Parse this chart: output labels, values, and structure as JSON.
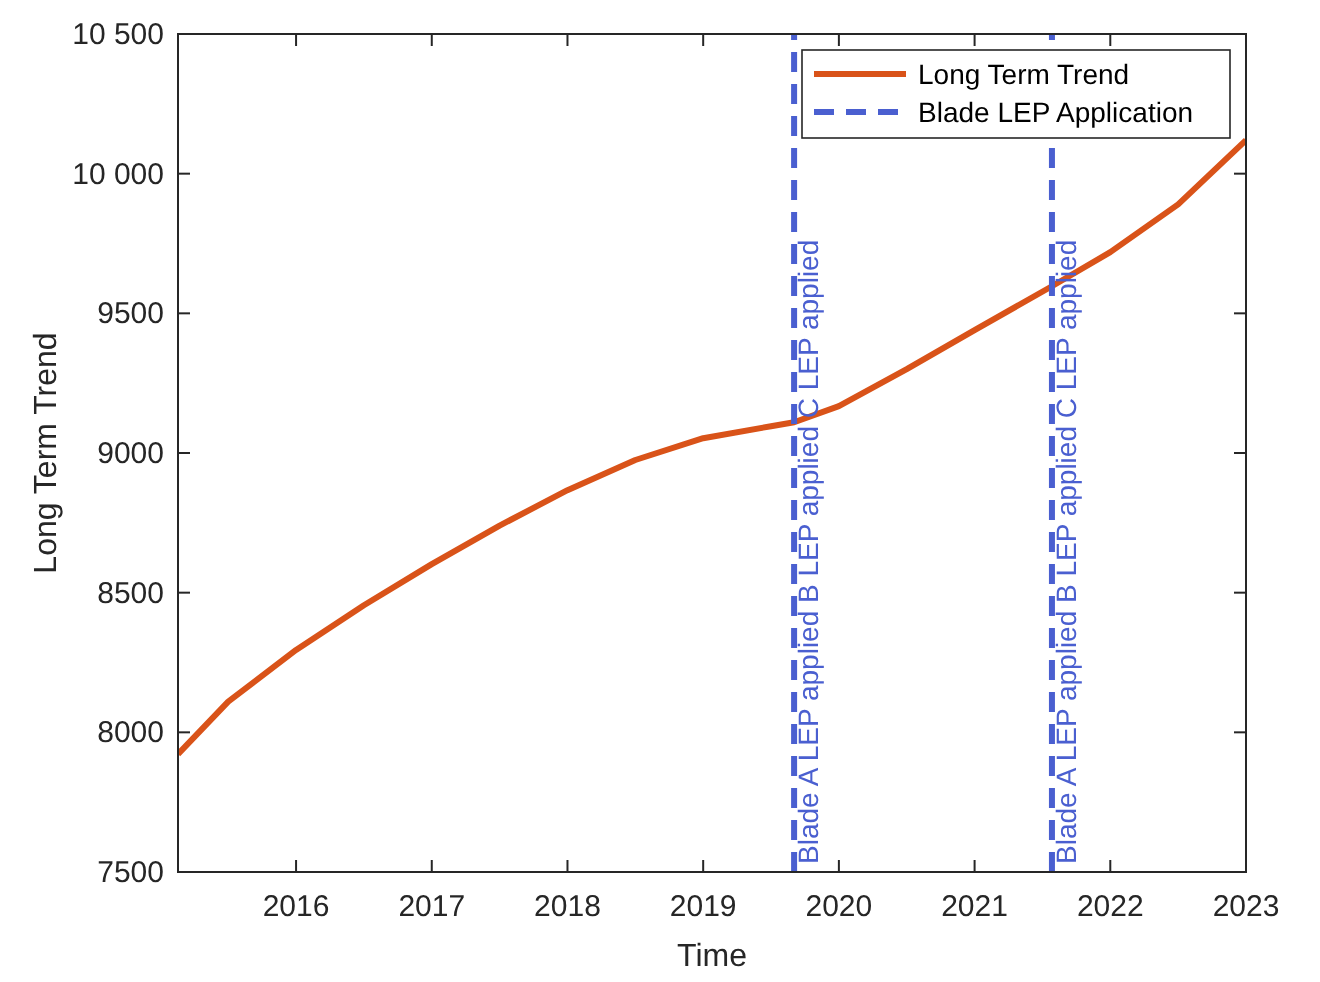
{
  "chart_data": {
    "type": "line",
    "xlabel": "Time",
    "ylabel": "Long Term Trend",
    "xlim": [
      2015.13,
      2023
    ],
    "xticks": [
      2016,
      2017,
      2018,
      2019,
      2020,
      2021,
      2022,
      2023
    ],
    "ylim": [
      7500,
      10500
    ],
    "yticks": [
      7500,
      8000,
      8500,
      9000,
      9500,
      {
        "value": 10000,
        "label": "10 000"
      },
      {
        "value": 10500,
        "label": "10 500"
      }
    ],
    "grid": false,
    "legend": "top right",
    "series": [
      {
        "name": "Long Term Trend",
        "color": "#d95319",
        "line_style": "solid",
        "x": [
          2015.13,
          2015.5,
          2016,
          2016.5,
          2017,
          2017.5,
          2018,
          2018.5,
          2019,
          2019.5,
          2019.67,
          2020,
          2020.5,
          2021,
          2021.57,
          2022,
          2022.5,
          2023
        ],
        "values": [
          7922,
          8110,
          8295,
          8455,
          8602,
          8740,
          8867,
          8975,
          9053,
          9096,
          9110,
          9168,
          9300,
          9440,
          9597,
          9719,
          9890,
          10120
        ]
      },
      {
        "name": "Blade LEP Application",
        "color": "#4a5fd0",
        "line_style": "dashed",
        "x": [
          2019.67,
          2019.67,
          2020.6,
          2021.57,
          2021.57
        ],
        "values": [
          7500,
          10500,
          null,
          7500,
          10500
        ]
      }
    ],
    "annotations": [
      {
        "text": "Blade  A LEP applied B LEP applied C LEP applied",
        "x": 2019.67,
        "y": 7500
      },
      {
        "text": "Blade  A LEP applied B LEP applied C LEP applied",
        "x": 2021.57,
        "y": 7500
      }
    ]
  }
}
